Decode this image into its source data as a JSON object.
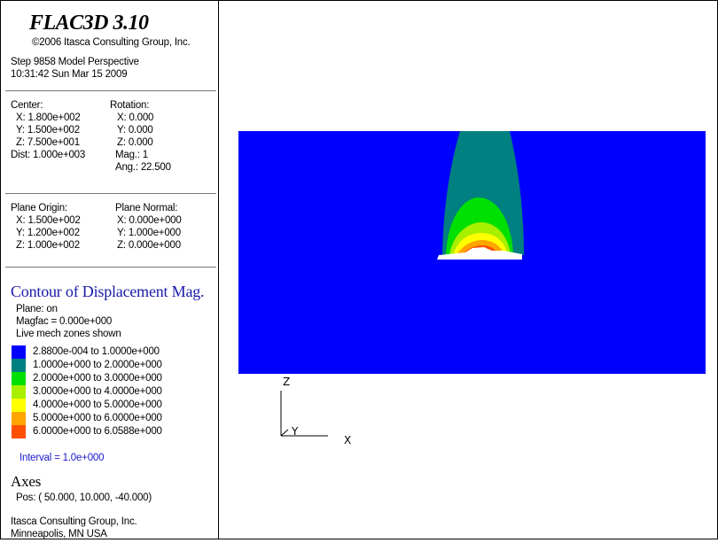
{
  "header": {
    "title": "FLAC3D 3.10",
    "copyright": "©2006 Itasca Consulting Group, Inc.",
    "step": "Step 9858  Model Perspective",
    "datetime": "10:31:42 Sun Mar 15 2009"
  },
  "view": {
    "center_label": "Center:",
    "center": [
      "X: 1.800e+002",
      "Y: 1.500e+002",
      "Z: 7.500e+001"
    ],
    "dist": "Dist: 1.000e+003",
    "rotation_label": "Rotation:",
    "rotation": [
      "X:   0.000",
      "Y:   0.000",
      "Z:   0.000"
    ],
    "mag": "Mag.:         1",
    "ang": "Ang.:  22.500"
  },
  "plane": {
    "origin_label": "Plane Origin:",
    "origin": [
      "X: 1.500e+002",
      "Y: 1.200e+002",
      "Z: 1.000e+002"
    ],
    "normal_label": "Plane Normal:",
    "normal": [
      "X: 0.000e+000",
      "Y: 1.000e+000",
      "Z: 0.000e+000"
    ]
  },
  "contour": {
    "title": "Contour of Displacement Mag.",
    "plane": "Plane: on",
    "magfac": "Magfac =  0.000e+000",
    "zones": "Live mech zones shown",
    "ranges": [
      {
        "label": "2.8800e-004 to  1.0000e+000",
        "color": "#0000ff"
      },
      {
        "label": "1.0000e+000 to  2.0000e+000",
        "color": "#008080"
      },
      {
        "label": "2.0000e+000 to  3.0000e+000",
        "color": "#00e000"
      },
      {
        "label": "3.0000e+000 to  4.0000e+000",
        "color": "#a8f000"
      },
      {
        "label": "4.0000e+000 to  5.0000e+000",
        "color": "#ffff00"
      },
      {
        "label": "5.0000e+000 to  6.0000e+000",
        "color": "#ffa500"
      },
      {
        "label": "6.0000e+000 to  6.0588e+000",
        "color": "#ff5000"
      }
    ],
    "interval": "Interval =  1.0e+000"
  },
  "axes": {
    "title": "Axes",
    "pos": "Pos: (  50.000,  10.000, -40.000)",
    "z_label": "Z",
    "y_label": "Y",
    "x_label": "X"
  },
  "footer": {
    "company": "Itasca Consulting Group, Inc.",
    "location": "Minneapolis, MN  USA"
  }
}
